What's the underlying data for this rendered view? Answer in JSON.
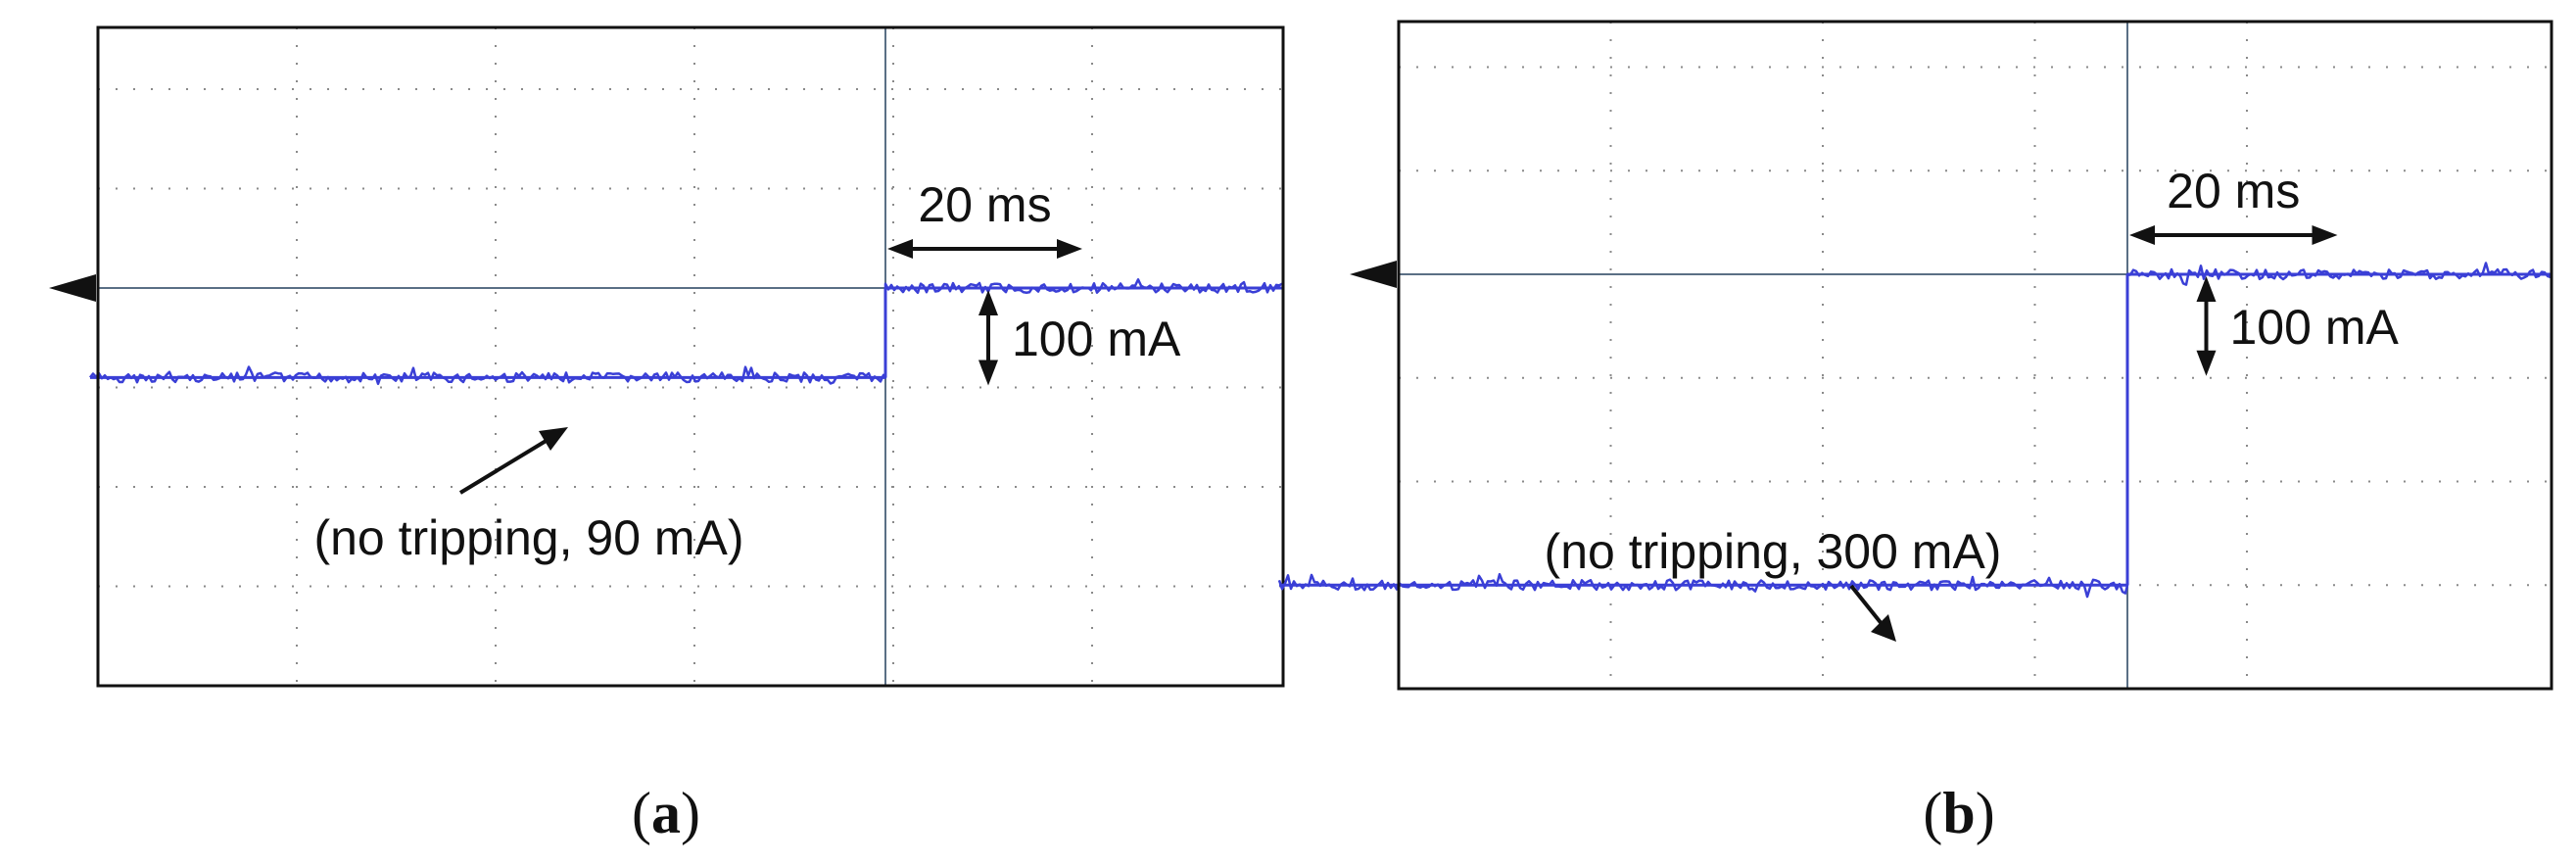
{
  "panels": [
    {
      "label": "(a)",
      "bold_letter": "a",
      "annotations": {
        "time_scale": "20 ms",
        "current_scale": "100 mA",
        "event": "(no tripping, 90 mA)"
      }
    },
    {
      "label": "(b)",
      "bold_letter": "b",
      "annotations": {
        "time_scale": "20 ms",
        "current_scale": "100 mA",
        "event": "(no tripping, 300 mA)"
      }
    }
  ],
  "chart_data": [
    {
      "type": "line",
      "title": "",
      "xlabel": "",
      "ylabel": "",
      "x_unit": "ms",
      "y_unit": "mA",
      "x_per_division": 20,
      "y_per_division": 100,
      "xlim": [
        -80,
        40
      ],
      "ylim": [
        -400,
        0
      ],
      "grid": true,
      "series": [
        {
          "color": "#3a3fd6",
          "x": [
            -80,
            0,
            0,
            40
          ],
          "y": [
            -90,
            -90,
            0,
            0
          ]
        }
      ]
    },
    {
      "type": "line",
      "title": "",
      "xlabel": "",
      "ylabel": "",
      "x_unit": "ms",
      "y_unit": "mA",
      "x_per_division": 20,
      "y_per_division": 100,
      "xlim": [
        -80,
        40
      ],
      "ylim": [
        -400,
        0
      ],
      "grid": true,
      "series": [
        {
          "color": "#3a3fd6",
          "x": [
            -80,
            0,
            0,
            40
          ],
          "y": [
            -300,
            -300,
            0,
            0
          ]
        }
      ]
    }
  ]
}
